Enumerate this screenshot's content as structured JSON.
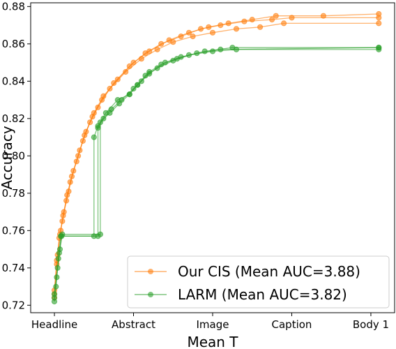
{
  "chart_data": {
    "type": "line",
    "title": "",
    "xlabel": "Mean T",
    "ylabel": "Accuracy",
    "x_ticks": [
      "Headline",
      "Abstract",
      "Image",
      "Caption",
      "Body 1"
    ],
    "xlim": [
      -0.3,
      4.3
    ],
    "ylim": [
      0.716,
      0.882
    ],
    "y_ticks": [
      0.72,
      0.74,
      0.76,
      0.78,
      0.8,
      0.82,
      0.84,
      0.86,
      0.88
    ],
    "grid": false,
    "legend_position": "bottom-right",
    "colors": {
      "Our CIS (Mean AUC=3.88)": "#ff7f0e",
      "LARM (Mean AUC=3.82)": "#2ca02c"
    },
    "series": [
      {
        "name": "Our CIS (Mean AUC=3.88)",
        "color": "#ff7f0e",
        "runs": [
          [
            [
              0.0,
              0.724
            ],
            [
              0.03,
              0.742
            ],
            [
              0.06,
              0.756
            ],
            [
              0.1,
              0.765
            ],
            [
              0.15,
              0.776
            ],
            [
              0.2,
              0.786
            ],
            [
              0.28,
              0.797
            ],
            [
              0.36,
              0.808
            ],
            [
              0.45,
              0.818
            ],
            [
              0.55,
              0.826
            ],
            [
              0.7,
              0.836
            ],
            [
              0.9,
              0.845
            ],
            [
              1.1,
              0.852
            ],
            [
              1.3,
              0.857
            ],
            [
              1.5,
              0.861
            ],
            [
              1.75,
              0.864
            ],
            [
              2.0,
              0.866
            ],
            [
              2.3,
              0.868
            ],
            [
              2.6,
              0.869
            ],
            [
              2.9,
              0.871
            ],
            [
              4.1,
              0.871
            ]
          ],
          [
            [
              0.0,
              0.726
            ],
            [
              0.03,
              0.744
            ],
            [
              0.07,
              0.758
            ],
            [
              0.11,
              0.768
            ],
            [
              0.16,
              0.779
            ],
            [
              0.22,
              0.789
            ],
            [
              0.3,
              0.8
            ],
            [
              0.38,
              0.811
            ],
            [
              0.48,
              0.821
            ],
            [
              0.6,
              0.83
            ],
            [
              0.75,
              0.839
            ],
            [
              0.95,
              0.848
            ],
            [
              1.15,
              0.855
            ],
            [
              1.35,
              0.86
            ],
            [
              1.6,
              0.864
            ],
            [
              1.85,
              0.868
            ],
            [
              2.1,
              0.87
            ],
            [
              2.4,
              0.872
            ],
            [
              2.75,
              0.873
            ],
            [
              3.0,
              0.874
            ],
            [
              4.1,
              0.874
            ]
          ],
          [
            [
              0.0,
              0.728
            ],
            [
              0.04,
              0.747
            ],
            [
              0.08,
              0.76
            ],
            [
              0.12,
              0.77
            ],
            [
              0.18,
              0.781
            ],
            [
              0.24,
              0.792
            ],
            [
              0.32,
              0.803
            ],
            [
              0.4,
              0.813
            ],
            [
              0.5,
              0.823
            ],
            [
              0.62,
              0.832
            ],
            [
              0.8,
              0.841
            ],
            [
              1.0,
              0.85
            ],
            [
              1.2,
              0.856
            ],
            [
              1.45,
              0.862
            ],
            [
              1.7,
              0.866
            ],
            [
              1.95,
              0.869
            ],
            [
              2.2,
              0.871
            ],
            [
              2.5,
              0.873
            ],
            [
              2.8,
              0.875
            ],
            [
              3.4,
              0.875
            ],
            [
              4.1,
              0.876
            ]
          ]
        ]
      },
      {
        "name": "LARM (Mean AUC=3.82)",
        "color": "#2ca02c",
        "runs": [
          [
            [
              0.0,
              0.722
            ],
            [
              0.02,
              0.73
            ],
            [
              0.05,
              0.745
            ],
            [
              0.08,
              0.757
            ],
            [
              0.5,
              0.757
            ],
            [
              0.5,
              0.81
            ],
            [
              0.55,
              0.816
            ],
            [
              0.65,
              0.823
            ],
            [
              0.8,
              0.83
            ],
            [
              0.95,
              0.833
            ],
            [
              1.05,
              0.838
            ],
            [
              1.15,
              0.843
            ],
            [
              1.3,
              0.847
            ],
            [
              1.5,
              0.851
            ],
            [
              1.7,
              0.854
            ],
            [
              2.0,
              0.856
            ],
            [
              2.3,
              0.857
            ],
            [
              4.1,
              0.857
            ]
          ],
          [
            [
              0.0,
              0.724
            ],
            [
              0.03,
              0.735
            ],
            [
              0.06,
              0.748
            ],
            [
              0.09,
              0.757
            ],
            [
              0.55,
              0.757
            ],
            [
              0.55,
              0.815
            ],
            [
              0.62,
              0.82
            ],
            [
              0.72,
              0.825
            ],
            [
              0.85,
              0.83
            ],
            [
              1.0,
              0.836
            ],
            [
              1.1,
              0.84
            ],
            [
              1.2,
              0.845
            ],
            [
              1.35,
              0.849
            ],
            [
              1.55,
              0.852
            ],
            [
              1.8,
              0.855
            ],
            [
              2.1,
              0.857
            ],
            [
              4.1,
              0.858
            ]
          ],
          [
            [
              0.0,
              0.726
            ],
            [
              0.04,
              0.74
            ],
            [
              0.07,
              0.75
            ],
            [
              0.1,
              0.758
            ],
            [
              0.58,
              0.758
            ],
            [
              0.58,
              0.818
            ],
            [
              0.7,
              0.823
            ],
            [
              0.82,
              0.828
            ],
            [
              0.95,
              0.833
            ],
            [
              1.05,
              0.838
            ],
            [
              1.2,
              0.844
            ],
            [
              1.4,
              0.85
            ],
            [
              1.6,
              0.853
            ],
            [
              1.9,
              0.856
            ],
            [
              2.25,
              0.858
            ],
            [
              4.1,
              0.858
            ]
          ]
        ]
      }
    ]
  }
}
